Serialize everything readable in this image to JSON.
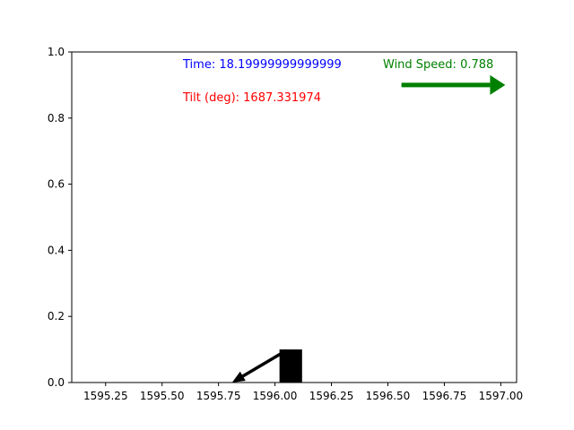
{
  "chart_data": {
    "type": "scatter",
    "title": "",
    "xlabel": "",
    "ylabel": "",
    "xlim": [
      1595.1,
      1597.07
    ],
    "ylim": [
      0,
      1
    ],
    "grid": false,
    "x_ticks": [
      1595.25,
      1595.5,
      1595.75,
      1596.0,
      1596.25,
      1596.5,
      1596.75,
      1597.0
    ],
    "x_tick_labels": [
      "1595.25",
      "1595.50",
      "1595.75",
      "1596.00",
      "1596.25",
      "1596.50",
      "1596.75",
      "1597.00"
    ],
    "y_ticks": [
      0,
      0.2,
      0.4,
      0.6,
      0.8,
      1.0
    ],
    "y_tick_labels": [
      "0.0",
      "0.2",
      "0.4",
      "0.6",
      "0.8",
      "1.0"
    ],
    "annotations": {
      "time": {
        "label": "Time: 18.19999999999999",
        "color": "#0000ff"
      },
      "tilt": {
        "label": "Tilt (deg): 1687.331974",
        "color": "#ff0000"
      },
      "wind": {
        "label": "Wind Speed: 0.788",
        "color": "#008000"
      }
    },
    "body": {
      "x_center": 1596.07,
      "width": 0.1,
      "height": 0.1,
      "color": "#000000"
    },
    "tilt_arrow": {
      "x_start": 1596.05,
      "y_start": 0.097,
      "x_end": 1595.81,
      "y_end": 0.0,
      "color": "#000000"
    },
    "wind_arrow": {
      "x_start": 1596.56,
      "x_end": 1597.02,
      "y": 0.9,
      "color": "#008000"
    }
  }
}
